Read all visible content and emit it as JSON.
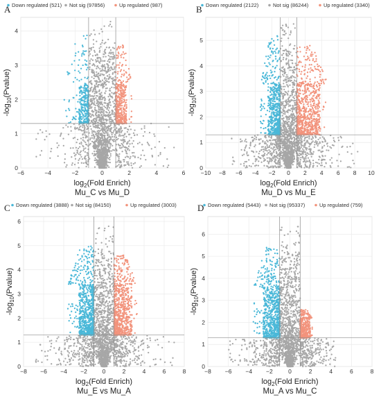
{
  "figure": {
    "panels": [
      {
        "panel_label": "A",
        "legend": [
          {
            "label": "Down regulated (521)",
            "color": "#4ab8d8"
          },
          {
            "label": "Not sig (97856)",
            "color": "#a7a7a7"
          },
          {
            "label": "Up regulated (987)",
            "color": "#f2937c"
          }
        ],
        "ylabel": {
          "pre": "-log",
          "sub": "10",
          "post": "(Pvalue)"
        },
        "xlabel": {
          "pre": "log",
          "sub": "2",
          "post": "(Fold Enrich)"
        },
        "comparison": "Mu_C vs Mu_D",
        "x_tick_labels": [
          "−6",
          "−4",
          "−2",
          "0",
          "2",
          "4",
          "6"
        ],
        "y_tick_labels": [
          "0",
          "1",
          "2",
          "3",
          "4"
        ]
      },
      {
        "panel_label": "B",
        "legend": [
          {
            "label": "Down regulated (2122)",
            "color": "#4ab8d8"
          },
          {
            "label": "Not sig (86244)",
            "color": "#a7a7a7"
          },
          {
            "label": "Up regulated (3340)",
            "color": "#f2937c"
          }
        ],
        "ylabel": {
          "pre": "-log",
          "sub": "10",
          "post": "(Pvalue)"
        },
        "xlabel": {
          "pre": "log",
          "sub": "2",
          "post": "(Fold Enrich)"
        },
        "comparison": "Mu_D vs Mu_E",
        "x_tick_labels": [
          "−10",
          "−8",
          "−6",
          "−4",
          "−2",
          "0",
          "2",
          "4",
          "6",
          "8",
          "10"
        ],
        "y_tick_labels": [
          "0",
          "1",
          "2",
          "3",
          "4",
          "5"
        ]
      },
      {
        "panel_label": "C",
        "legend": [
          {
            "label": "Down regulated (3888)",
            "color": "#4ab8d8"
          },
          {
            "label": "Not sig (84150)",
            "color": "#a7a7a7"
          },
          {
            "label": "Up regulated (3003)",
            "color": "#f2937c"
          }
        ],
        "ylabel": {
          "pre": "-log",
          "sub": "10",
          "post": "(Pvalue)"
        },
        "xlabel": {
          "pre": "log",
          "sub": "2",
          "post": "(Fold Enrich)"
        },
        "comparison": "Mu_E vs Mu_A",
        "x_tick_labels": [
          "−8",
          "−6",
          "−4",
          "−2",
          "0",
          "2",
          "4",
          "6",
          "8"
        ],
        "y_tick_labels": [
          "0",
          "1",
          "2",
          "3",
          "4",
          "5",
          "6"
        ]
      },
      {
        "panel_label": "D",
        "legend": [
          {
            "label": "Down regulated (5443)",
            "color": "#4ab8d8"
          },
          {
            "label": "Not sig (95337)",
            "color": "#a7a7a7"
          },
          {
            "label": "Up regulated (759)",
            "color": "#f2937c"
          }
        ],
        "ylabel": {
          "pre": "-log",
          "sub": "10",
          "post": "(Pvalue)"
        },
        "xlabel": {
          "pre": "log",
          "sub": "2",
          "post": "(Fold Enrich)"
        },
        "comparison": "Mu_A vs Mu_C",
        "x_tick_labels": [
          "−8",
          "−6",
          "−4",
          "−2",
          "0",
          "2",
          "4",
          "6",
          "8"
        ],
        "y_tick_labels": [
          "0",
          "1",
          "2",
          "3",
          "4",
          "5",
          "6"
        ]
      }
    ]
  },
  "chart_data": [
    {
      "type": "scatter",
      "panel": "A",
      "title": "",
      "subtitle": "Mu_C vs Mu_D",
      "xlabel": "log2(Fold Enrich)",
      "ylabel": "-log10(Pvalue)",
      "xlim": [
        -6,
        6
      ],
      "ylim": [
        0,
        4.4
      ],
      "fold_threshold": 1,
      "pvalue_threshold_neglog10": 1.3,
      "grid": true,
      "legend_position": "top",
      "series": [
        {
          "name": "Down regulated (521)",
          "color": "#4ab8d8",
          "count": 521,
          "x_range": [
            -1.7,
            -1.0
          ],
          "y_range": [
            1.3,
            2.5
          ],
          "extreme_x": -2.8,
          "max_y": 3.9
        },
        {
          "name": "Not sig (97856)",
          "color": "#a7a7a7",
          "count": 97856,
          "x_range": [
            -5.0,
            5.4
          ],
          "y_range": [
            0,
            4.3
          ]
        },
        {
          "name": "Up regulated (987)",
          "color": "#f2937c",
          "count": 987,
          "x_range": [
            1.0,
            1.8
          ],
          "y_range": [
            1.3,
            2.5
          ],
          "extreme_x": 2.2,
          "max_y": 3.6
        }
      ]
    },
    {
      "type": "scatter",
      "panel": "B",
      "title": "",
      "subtitle": "Mu_D vs Mu_E",
      "xlabel": "log2(Fold Enrich)",
      "ylabel": "-log10(Pvalue)",
      "xlim": [
        -10,
        10
      ],
      "ylim": [
        0,
        5.9
      ],
      "fold_threshold": 1,
      "pvalue_threshold_neglog10": 1.3,
      "grid": true,
      "legend_position": "top",
      "series": [
        {
          "name": "Down regulated (2122)",
          "color": "#4ab8d8",
          "count": 2122,
          "x_range": [
            -2.5,
            -1.0
          ],
          "y_range": [
            1.3,
            3.3
          ],
          "extreme_x": -3.4,
          "max_y": 5.2
        },
        {
          "name": "Not sig (86244)",
          "color": "#a7a7a7",
          "count": 86244,
          "x_range": [
            -7.0,
            8.5
          ],
          "y_range": [
            0,
            5.7
          ]
        },
        {
          "name": "Up regulated (3340)",
          "color": "#f2937c",
          "count": 3340,
          "x_range": [
            1.0,
            3.8
          ],
          "y_range": [
            1.3,
            3.3
          ],
          "extreme_x": 4.8,
          "max_y": 4.8
        }
      ]
    },
    {
      "type": "scatter",
      "panel": "C",
      "title": "",
      "subtitle": "Mu_E vs Mu_A",
      "xlabel": "log2(Fold Enrich)",
      "ylabel": "-log10(Pvalue)",
      "xlim": [
        -8,
        8
      ],
      "ylim": [
        0,
        6.2
      ],
      "fold_threshold": 1,
      "pvalue_threshold_neglog10": 1.3,
      "grid": true,
      "legend_position": "top",
      "series": [
        {
          "name": "Down regulated (3888)",
          "color": "#4ab8d8",
          "count": 3888,
          "x_range": [
            -2.5,
            -1.0
          ],
          "y_range": [
            1.3,
            3.4
          ],
          "extreme_x": -3.6,
          "max_y": 5.0
        },
        {
          "name": "Not sig (84150)",
          "color": "#a7a7a7",
          "count": 84150,
          "x_range": [
            -7.0,
            7.0
          ],
          "y_range": [
            0,
            5.8
          ]
        },
        {
          "name": "Up regulated (3003)",
          "color": "#f2937c",
          "count": 3003,
          "x_range": [
            1.0,
            2.8
          ],
          "y_range": [
            1.3,
            3.4
          ],
          "extreme_x": 3.3,
          "max_y": 4.6
        }
      ]
    },
    {
      "type": "scatter",
      "panel": "D",
      "title": "",
      "subtitle": "Mu_A vs Mu_C",
      "xlabel": "log2(Fold Enrich)",
      "ylabel": "-log10(Pvalue)",
      "xlim": [
        -8,
        8
      ],
      "ylim": [
        0,
        6.8
      ],
      "fold_threshold": 1,
      "pvalue_threshold_neglog10": 1.3,
      "grid": true,
      "legend_position": "top",
      "series": [
        {
          "name": "Down regulated (5443)",
          "color": "#4ab8d8",
          "count": 5443,
          "x_range": [
            -2.6,
            -1.0
          ],
          "y_range": [
            1.3,
            3.6
          ],
          "extreme_x": -3.6,
          "max_y": 5.4
        },
        {
          "name": "Not sig (95337)",
          "color": "#a7a7a7",
          "count": 95337,
          "x_range": [
            -6.0,
            4.5
          ],
          "y_range": [
            0,
            6.4
          ]
        },
        {
          "name": "Up regulated (759)",
          "color": "#f2937c",
          "count": 759,
          "x_range": [
            1.0,
            2.0
          ],
          "y_range": [
            1.3,
            2.2
          ],
          "extreme_x": 2.2,
          "max_y": 2.6
        }
      ]
    }
  ]
}
